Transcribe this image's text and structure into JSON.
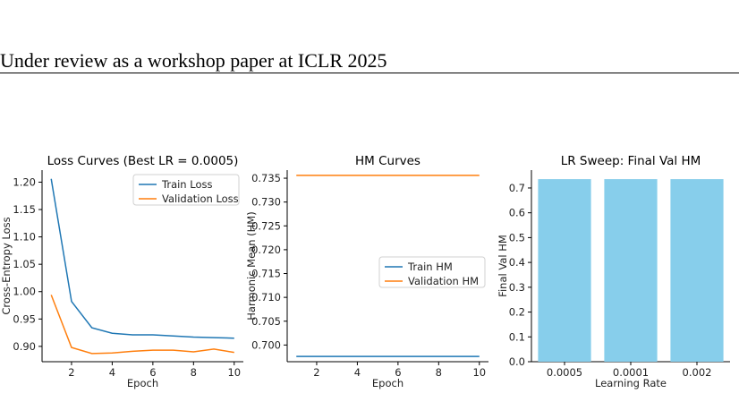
{
  "page": {
    "header": "Under review as a workshop paper at ICLR 2025"
  },
  "colors": {
    "train": "#1f77b4",
    "validation": "#ff7f0e",
    "bar": "#87ceeb",
    "axis": "#000000"
  },
  "chart_data": [
    {
      "type": "line",
      "title": "Loss Curves (Best LR = 0.0005)",
      "xlabel": "Epoch",
      "ylabel": "Cross-Entropy Loss",
      "xlim": [
        0.55,
        10.45
      ],
      "ylim": [
        0.872,
        1.222
      ],
      "xticks": [
        2,
        4,
        6,
        8,
        10
      ],
      "yticks": [
        0.9,
        0.95,
        1.0,
        1.05,
        1.1,
        1.15,
        1.2
      ],
      "ytick_labels": [
        "0.90",
        "0.95",
        "1.00",
        "1.05",
        "1.10",
        "1.15",
        "1.20"
      ],
      "legend_position": "top-right",
      "x": [
        1,
        2,
        3,
        4,
        5,
        6,
        7,
        8,
        9,
        10
      ],
      "series": [
        {
          "name": "Train Loss",
          "color": "#1f77b4",
          "values": [
            1.206,
            0.982,
            0.934,
            0.924,
            0.921,
            0.921,
            0.919,
            0.917,
            0.916,
            0.915
          ]
        },
        {
          "name": "Validation Loss",
          "color": "#ff7f0e",
          "values": [
            0.994,
            0.898,
            0.887,
            0.888,
            0.891,
            0.893,
            0.893,
            0.89,
            0.895,
            0.889
          ]
        }
      ]
    },
    {
      "type": "line",
      "title": "HM Curves",
      "xlabel": "Epoch",
      "ylabel": "Harmonic Mean (HM)",
      "xlim": [
        0.55,
        10.45
      ],
      "ylim": [
        0.6965,
        0.7367
      ],
      "xticks": [
        2,
        4,
        6,
        8,
        10
      ],
      "yticks": [
        0.7,
        0.705,
        0.71,
        0.715,
        0.72,
        0.725,
        0.73,
        0.735
      ],
      "ytick_labels": [
        "0.700",
        "0.705",
        "0.710",
        "0.715",
        "0.720",
        "0.725",
        "0.730",
        "0.735"
      ],
      "legend_position": "center-right",
      "x": [
        1,
        2,
        3,
        4,
        5,
        6,
        7,
        8,
        9,
        10
      ],
      "series": [
        {
          "name": "Train HM",
          "color": "#1f77b4",
          "values": [
            0.6976,
            0.6976,
            0.6976,
            0.6976,
            0.6976,
            0.6976,
            0.6976,
            0.6976,
            0.6976,
            0.6976
          ]
        },
        {
          "name": "Validation HM",
          "color": "#ff7f0e",
          "values": [
            0.7356,
            0.7356,
            0.7356,
            0.7356,
            0.7356,
            0.7356,
            0.7356,
            0.7356,
            0.7356,
            0.7356
          ]
        }
      ]
    },
    {
      "type": "bar",
      "title": "LR Sweep: Final Val HM",
      "xlabel": "Learning Rate",
      "ylabel": "Final Val HM",
      "ylim": [
        0,
        0.772
      ],
      "yticks": [
        0.0,
        0.1,
        0.2,
        0.3,
        0.4,
        0.5,
        0.6,
        0.7
      ],
      "ytick_labels": [
        "0.0",
        "0.1",
        "0.2",
        "0.3",
        "0.4",
        "0.5",
        "0.6",
        "0.7"
      ],
      "categories": [
        "0.0005",
        "0.0001",
        "0.002"
      ],
      "values": [
        0.7356,
        0.7356,
        0.7356
      ],
      "color": "#87ceeb"
    }
  ]
}
